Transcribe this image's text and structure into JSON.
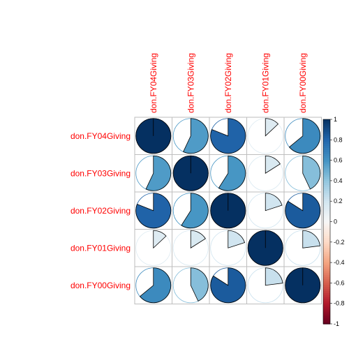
{
  "chart_data": {
    "type": "heatmap",
    "method": "pie",
    "variables": [
      "don.FY04Giving",
      "don.FY03Giving",
      "don.FY02Giving",
      "don.FY01Giving",
      "don.FY00Giving"
    ],
    "matrix": [
      [
        1.0,
        0.57,
        0.81,
        0.13,
        0.64
      ],
      [
        0.57,
        1.0,
        0.59,
        0.16,
        0.43
      ],
      [
        0.81,
        0.59,
        1.0,
        0.2,
        0.84
      ],
      [
        0.13,
        0.16,
        0.2,
        1.0,
        0.23
      ],
      [
        0.64,
        0.43,
        0.84,
        0.23,
        1.0
      ]
    ],
    "legend": {
      "position": "right",
      "range": [
        -1,
        1
      ],
      "ticks": [
        "1",
        "0.8",
        "0.6",
        "0.4",
        "0.2",
        "0",
        "-0.2",
        "-0.4",
        "-0.6",
        "-0.8",
        "-1"
      ]
    },
    "colors": {
      "label": "#ff0000",
      "grid": "#bebebe",
      "positive_strong": "#053061",
      "neutral": "#f7f7f7",
      "negative_strong": "#67001f"
    }
  }
}
